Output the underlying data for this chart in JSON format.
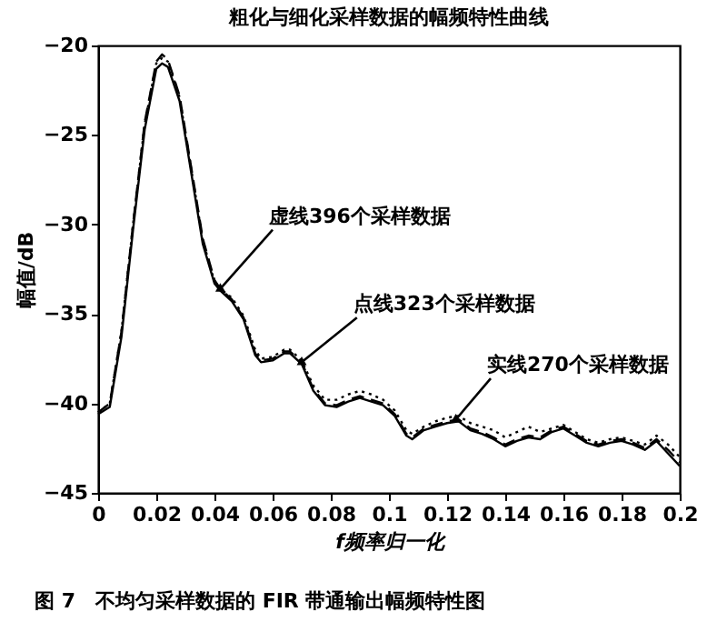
{
  "chart_data": {
    "type": "line",
    "title": "粗化与细化采样数据的幅频特性曲线",
    "xlabel": "f频率归一化",
    "ylabel": "幅值/dB",
    "x": [
      0,
      0.004,
      0.008,
      0.012,
      0.016,
      0.02,
      0.022,
      0.024,
      0.028,
      0.032,
      0.036,
      0.04,
      0.042,
      0.046,
      0.05,
      0.054,
      0.056,
      0.06,
      0.064,
      0.066,
      0.07,
      0.074,
      0.078,
      0.082,
      0.086,
      0.09,
      0.094,
      0.098,
      0.102,
      0.106,
      0.108,
      0.112,
      0.116,
      0.12,
      0.124,
      0.128,
      0.132,
      0.136,
      0.14,
      0.144,
      0.148,
      0.152,
      0.156,
      0.16,
      0.164,
      0.168,
      0.172,
      0.176,
      0.18,
      0.184,
      0.188,
      0.192,
      0.196,
      0.2
    ],
    "series": [
      {
        "color": "#000000",
        "line_style": "dashed",
        "values": [
          -40.5,
          -40,
          -36,
          -30,
          -24.3,
          -20.9,
          -20.5,
          -20.8,
          -22.8,
          -26.8,
          -30.8,
          -33.1,
          -33.6,
          -34.2,
          -35.2,
          -37.2,
          -37.6,
          -37.5,
          -37.1,
          -37.1,
          -37.7,
          -39.2,
          -40.0,
          -40.1,
          -39.8,
          -39.6,
          -39.8,
          -40.0,
          -40.6,
          -41.7,
          -41.9,
          -41.4,
          -41.2,
          -41.0,
          -40.9,
          -41.4,
          -41.6,
          -41.9,
          -42.3,
          -42.0,
          -41.8,
          -41.9,
          -41.5,
          -41.3,
          -41.7,
          -42.1,
          -42.3,
          -42.1,
          -42.0,
          -42.2,
          -42.5,
          -42.0,
          -42.6,
          -43.3
        ]
      },
      {
        "color": "#000000",
        "line_style": "dotted",
        "values": [
          -40.5,
          -40,
          -36,
          -30,
          -24.4,
          -21.0,
          -20.7,
          -20.9,
          -22.9,
          -26.9,
          -30.9,
          -33.2,
          -33.6,
          -34.1,
          -35.1,
          -37.0,
          -37.5,
          -37.4,
          -37.0,
          -37.0,
          -37.6,
          -39.0,
          -39.8,
          -39.8,
          -39.5,
          -39.3,
          -39.5,
          -39.8,
          -40.4,
          -41.5,
          -41.7,
          -41.3,
          -41.0,
          -40.8,
          -40.7,
          -41.1,
          -41.3,
          -41.5,
          -41.9,
          -41.6,
          -41.3,
          -41.6,
          -41.4,
          -41.2,
          -41.6,
          -42.0,
          -42.2,
          -42.0,
          -41.9,
          -42.1,
          -42.3,
          -41.8,
          -42.3,
          -43.0
        ]
      },
      {
        "color": "#000000",
        "line_style": "solid",
        "values": [
          -40.6,
          -40.2,
          -36.3,
          -30.3,
          -24.7,
          -21.3,
          -21.0,
          -21.2,
          -23.1,
          -27.1,
          -31.1,
          -33.3,
          -33.7,
          -34.3,
          -35.3,
          -37.3,
          -37.7,
          -37.6,
          -37.2,
          -37.2,
          -37.8,
          -39.3,
          -40.1,
          -40.2,
          -39.9,
          -39.7,
          -39.9,
          -40.1,
          -40.7,
          -41.8,
          -42.0,
          -41.5,
          -41.3,
          -41.1,
          -41.0,
          -41.5,
          -41.7,
          -42.0,
          -42.4,
          -42.1,
          -41.9,
          -42.0,
          -41.6,
          -41.4,
          -41.8,
          -42.2,
          -42.4,
          -42.2,
          -42.1,
          -42.3,
          -42.6,
          -42.1,
          -42.8,
          -43.5
        ]
      }
    ],
    "xlim": [
      0,
      0.2
    ],
    "xticks": [
      0,
      0.02,
      0.04,
      0.06,
      0.08,
      0.1,
      0.12,
      0.14,
      0.16,
      0.18,
      0.2
    ],
    "ylim": [
      -45,
      -20
    ],
    "yticks": [
      -45,
      -40,
      -35,
      -30,
      -25,
      -20
    ],
    "grid": false,
    "annotations": [
      {
        "text": "虚线396个采样数据",
        "x": 0.042,
        "y": -33.6
      },
      {
        "text": "点线323个采样数据",
        "x": 0.07,
        "y": -37.7
      },
      {
        "text": "实线270个采样数据",
        "x": 0.123,
        "y": -40.9
      },
      "图 7　不均匀采样数据的 FIR 带通输出幅频特性图"
    ]
  }
}
